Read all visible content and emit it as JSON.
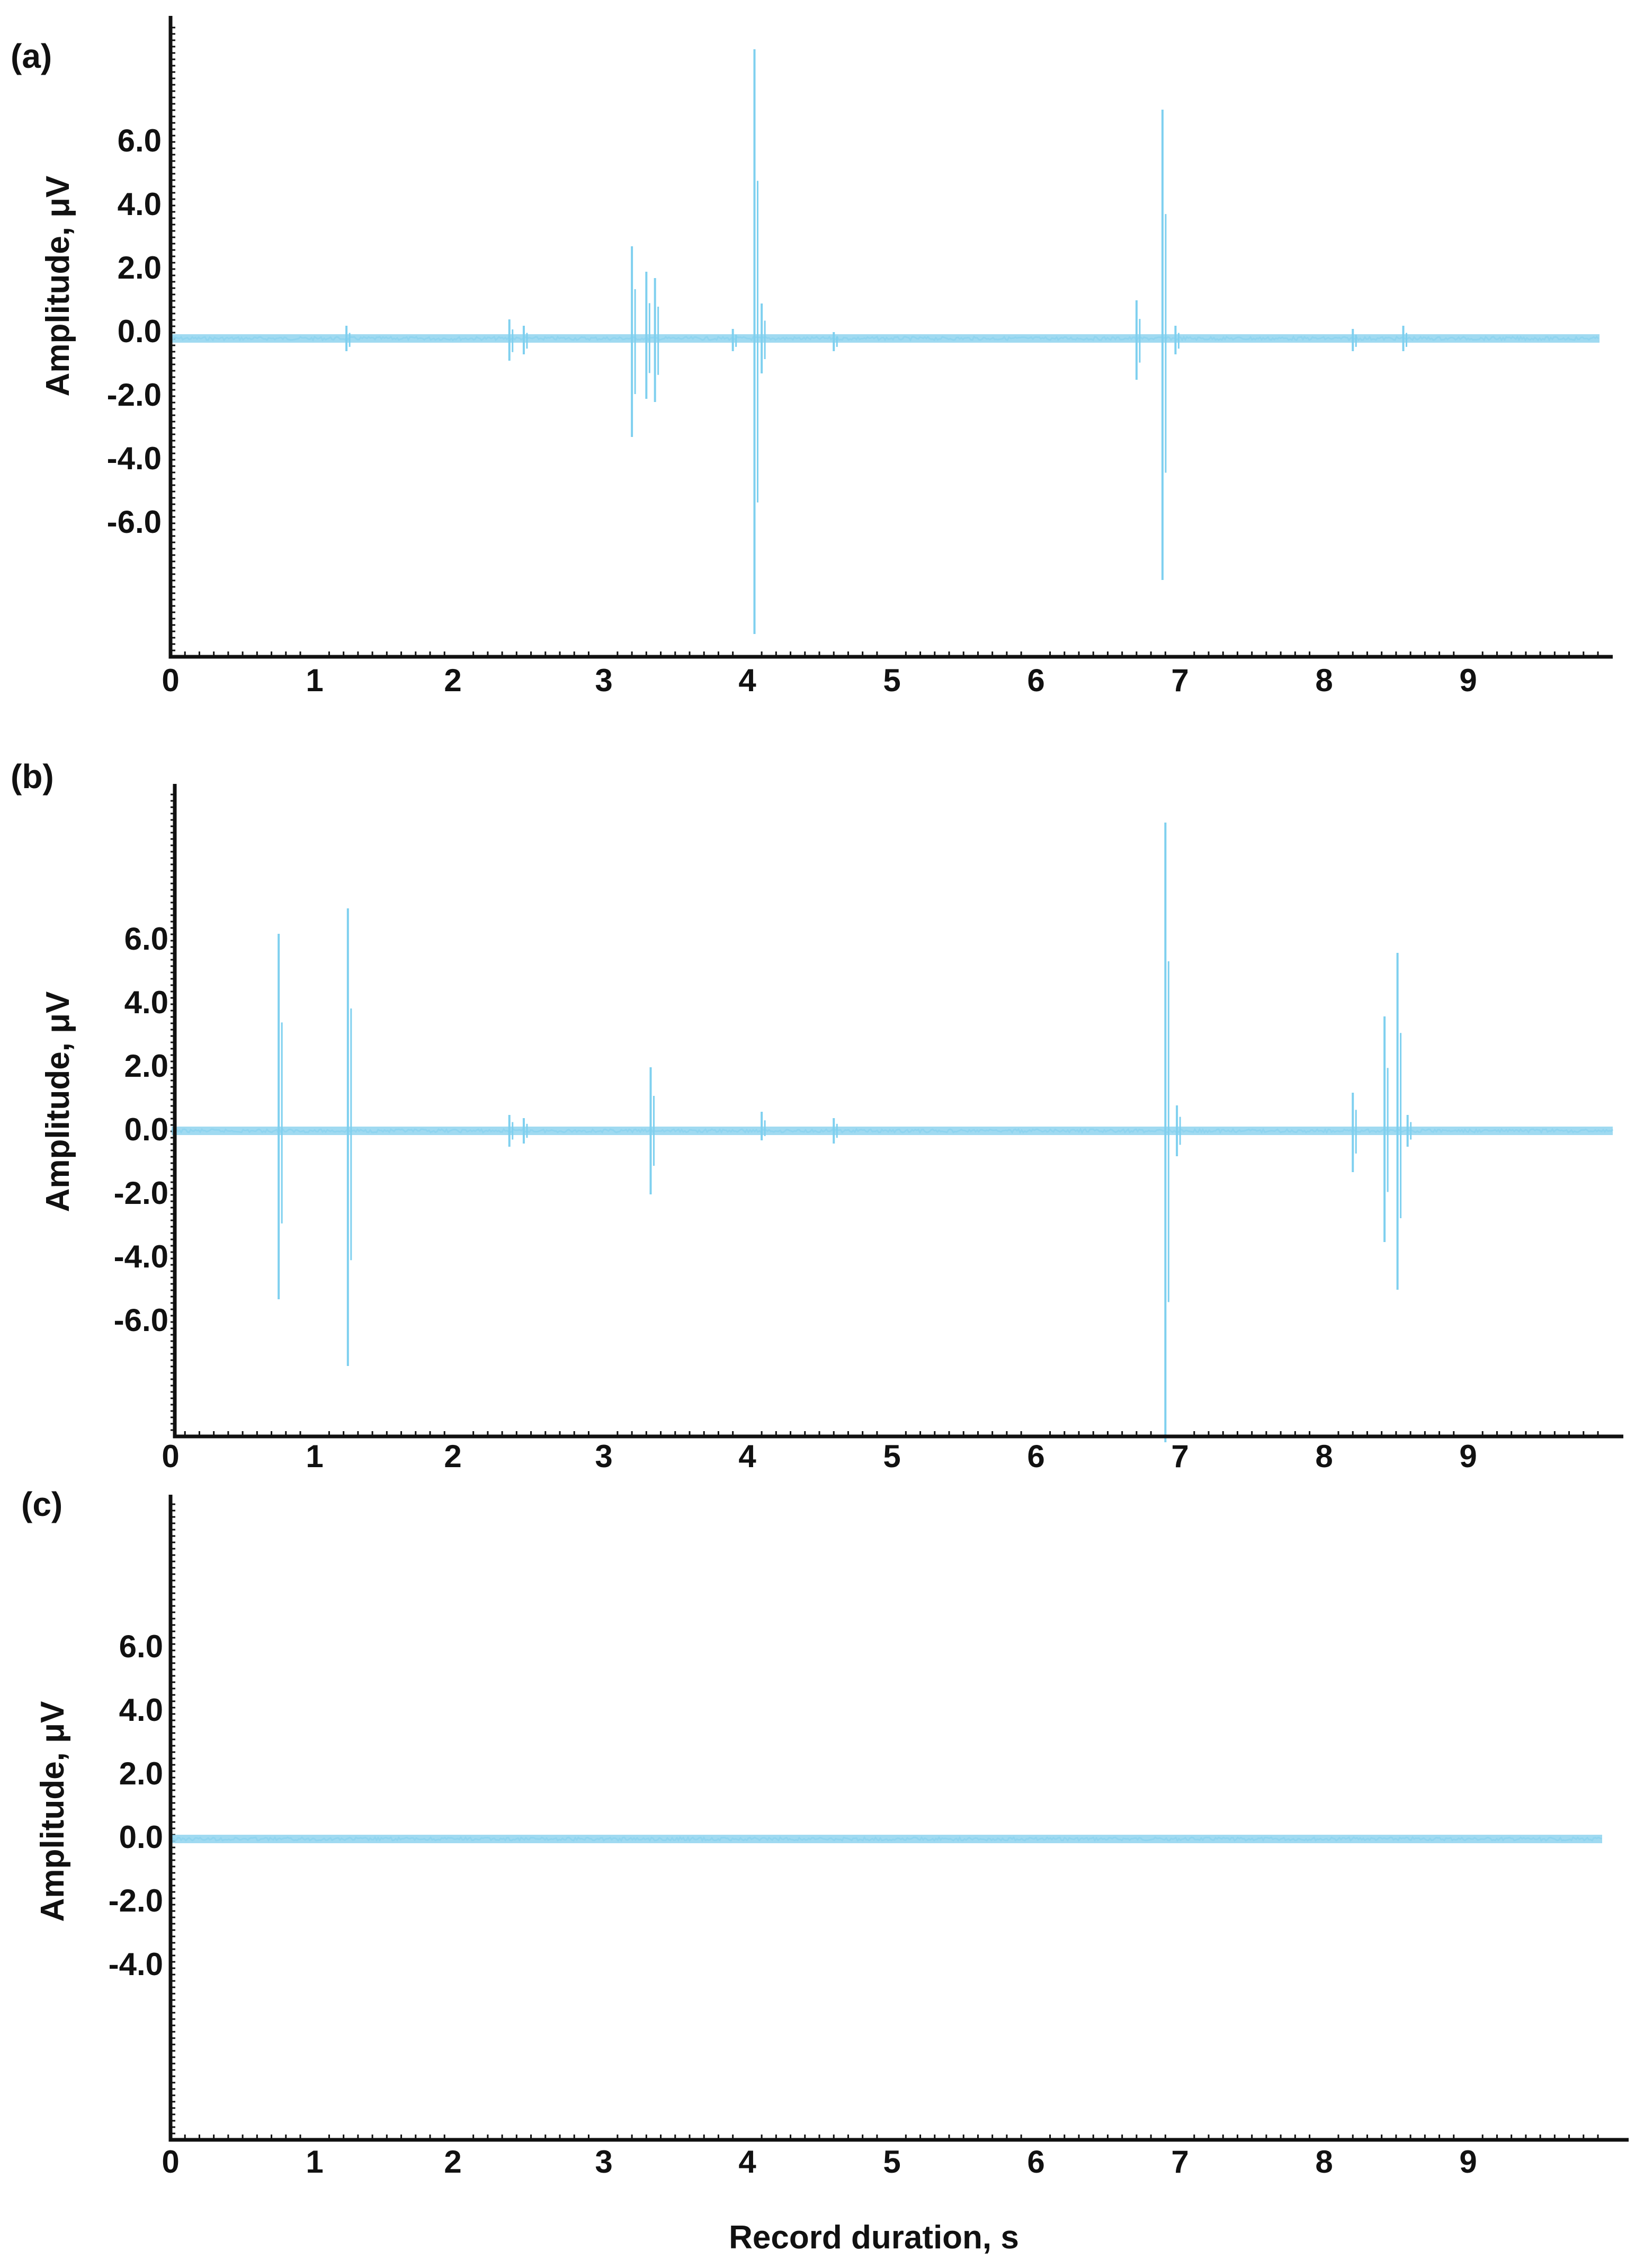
{
  "chart_data": [
    {
      "panel_label": "(a)",
      "type": "line",
      "ylabel": "Amplitude, μV",
      "xlabel": "",
      "xlim": [
        0,
        10
      ],
      "ylim": [
        -10,
        10
      ],
      "yticks": [
        "6.0",
        "4.0",
        "2.0",
        "0.0",
        "-2.0",
        "-4.0",
        "-6.0"
      ],
      "xticks": [
        "0",
        "1",
        "2",
        "3",
        "4",
        "5",
        "6",
        "7",
        "8",
        "9"
      ],
      "baseline": 0.1,
      "spikes": [
        {
          "t": 1.22,
          "max": 0.5,
          "min": -0.3
        },
        {
          "t": 2.35,
          "max": 0.7,
          "min": -0.6
        },
        {
          "t": 2.45,
          "max": 0.5,
          "min": -0.4
        },
        {
          "t": 3.2,
          "max": 3.0,
          "min": -3.0
        },
        {
          "t": 3.3,
          "max": 2.2,
          "min": -1.8
        },
        {
          "t": 3.36,
          "max": 2.0,
          "min": -1.9
        },
        {
          "t": 3.9,
          "max": 0.4,
          "min": -0.3
        },
        {
          "t": 4.05,
          "max": 9.2,
          "min": -9.2
        },
        {
          "t": 4.1,
          "max": 1.2,
          "min": -1.0
        },
        {
          "t": 4.6,
          "max": 0.3,
          "min": -0.3
        },
        {
          "t": 6.7,
          "max": 1.3,
          "min": -1.2
        },
        {
          "t": 6.88,
          "max": 7.3,
          "min": -7.5
        },
        {
          "t": 6.97,
          "max": 0.5,
          "min": -0.4
        },
        {
          "t": 8.2,
          "max": 0.4,
          "min": -0.3
        },
        {
          "t": 8.55,
          "max": 0.5,
          "min": -0.3
        }
      ]
    },
    {
      "panel_label": "(b)",
      "type": "line",
      "ylabel": "Amplitude, μV",
      "xlabel": "",
      "xlim": [
        0,
        10
      ],
      "ylim": [
        -10,
        10
      ],
      "yticks": [
        "6.0",
        "4.0",
        "2.0",
        "0.0",
        "-2.0",
        "-4.0",
        "-6.0"
      ],
      "xticks": [
        "0",
        "1",
        "2",
        "3",
        "4",
        "5",
        "6",
        "7",
        "8",
        "9"
      ],
      "baseline": 0.0,
      "spikes": [
        {
          "t": 0.75,
          "max": 6.2,
          "min": -5.3
        },
        {
          "t": 1.23,
          "max": 7.0,
          "min": -7.4
        },
        {
          "t": 2.35,
          "max": 0.5,
          "min": -0.5
        },
        {
          "t": 2.45,
          "max": 0.4,
          "min": -0.4
        },
        {
          "t": 3.33,
          "max": 2.0,
          "min": -2.0
        },
        {
          "t": 4.1,
          "max": 0.6,
          "min": -0.3
        },
        {
          "t": 4.6,
          "max": 0.4,
          "min": -0.4
        },
        {
          "t": 6.9,
          "max": 9.7,
          "min": -9.8
        },
        {
          "t": 6.98,
          "max": 0.8,
          "min": -0.8
        },
        {
          "t": 8.2,
          "max": 1.2,
          "min": -1.3
        },
        {
          "t": 8.42,
          "max": 3.6,
          "min": -3.5
        },
        {
          "t": 8.51,
          "max": 5.6,
          "min": -5.0
        },
        {
          "t": 8.58,
          "max": 0.5,
          "min": -0.5
        }
      ]
    },
    {
      "panel_label": "(c)",
      "type": "line",
      "ylabel": "Amplitude, μV",
      "xlabel": "Record duration, s",
      "xlim": [
        0,
        10
      ],
      "ylim": [
        -10,
        10
      ],
      "yticks": [
        "6.0",
        "4.0",
        "2.0",
        "0.0",
        "-2.0",
        "-4.0"
      ],
      "xticks": [
        "0",
        "1",
        "2",
        "3",
        "4",
        "5",
        "6",
        "7",
        "8",
        "9"
      ],
      "baseline": 0.0,
      "spikes": []
    }
  ]
}
